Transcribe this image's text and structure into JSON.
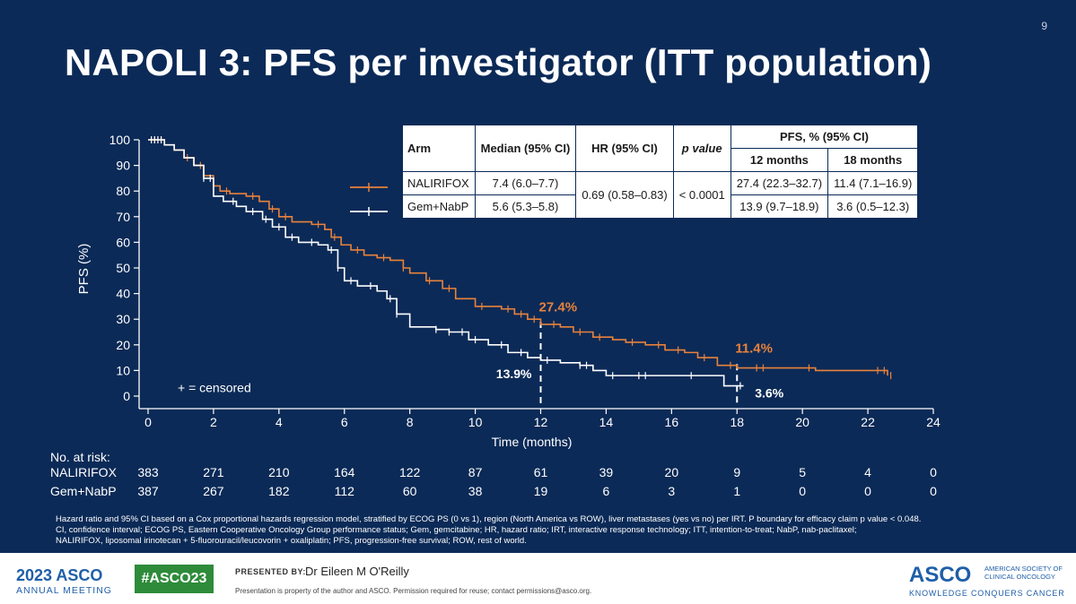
{
  "slide": {
    "page_number": "9",
    "title": "NAPOLI 3: PFS per investigator (ITT population)"
  },
  "colors": {
    "background": "#0b2a57",
    "nalirifox": "#e8823b",
    "gemnabp": "#ffffff",
    "text": "#ffffff"
  },
  "chart_data": {
    "type": "line",
    "title": "",
    "xlabel": "Time (months)",
    "ylabel": "PFS (%)",
    "xlim": [
      0,
      24
    ],
    "ylim": [
      0,
      100
    ],
    "xticks": [
      0,
      2,
      4,
      6,
      8,
      10,
      12,
      14,
      16,
      18,
      20,
      22,
      24
    ],
    "yticks": [
      0,
      10,
      20,
      30,
      40,
      50,
      60,
      70,
      80,
      90,
      100
    ],
    "censored_legend": "+ = censored",
    "series": [
      {
        "name": "NALIRIFOX",
        "color": "#e8823b",
        "x": [
          0,
          0.5,
          0.8,
          1.1,
          1.4,
          1.7,
          2.0,
          2.2,
          2.5,
          3.0,
          3.4,
          3.7,
          4.0,
          4.4,
          5.0,
          5.4,
          5.6,
          5.9,
          6.2,
          6.6,
          7.0,
          7.4,
          7.8,
          8.0,
          8.5,
          9.0,
          9.4,
          10.0,
          10.8,
          11.2,
          11.6,
          12.0,
          12.6,
          13.0,
          13.6,
          14.2,
          14.6,
          15.2,
          15.8,
          16.4,
          16.8,
          17.4,
          18.0,
          18.6,
          19.6,
          20.4,
          22.2,
          22.6
        ],
        "y": [
          100,
          98,
          96,
          93,
          90,
          86,
          82,
          80,
          79,
          78,
          76,
          73,
          70,
          68,
          67,
          65,
          62,
          59,
          57,
          55,
          54,
          53,
          50,
          48,
          45,
          42,
          38,
          35,
          34,
          32,
          30,
          28,
          27,
          25,
          23,
          22,
          21,
          20,
          18,
          17,
          15,
          12,
          11,
          11,
          11,
          10,
          10,
          8
        ],
        "censor_x": [
          0.2,
          0.4,
          1.2,
          1.6,
          2.4,
          3.2,
          3.8,
          4.2,
          5.2,
          5.7,
          6.4,
          7.2,
          7.8,
          8.6,
          9.2,
          10.2,
          11.0,
          11.4,
          11.8,
          12.4,
          13.2,
          13.8,
          14.8,
          15.6,
          16.2,
          17.0,
          17.8,
          18.6,
          18.8,
          20.2,
          22.3,
          22.5,
          22.7
        ],
        "label": "27.4%",
        "label2": "11.4%"
      },
      {
        "name": "Gem+NabP",
        "color": "#ffffff",
        "x": [
          0,
          0.5,
          0.8,
          1.1,
          1.4,
          1.7,
          2.0,
          2.3,
          2.7,
          3.0,
          3.5,
          3.8,
          4.2,
          4.6,
          5.2,
          5.5,
          5.8,
          6.0,
          6.4,
          7.0,
          7.3,
          7.6,
          8.0,
          8.8,
          9.2,
          9.8,
          10.4,
          11.0,
          11.6,
          12.0,
          12.6,
          13.2,
          13.6,
          14.0,
          15.2,
          16.8,
          17.4,
          17.6,
          18.0,
          18.2
        ],
        "y": [
          100,
          98,
          96,
          93,
          90,
          85,
          78,
          76,
          74,
          72,
          69,
          66,
          62,
          60,
          59,
          57,
          50,
          45,
          43,
          41,
          38,
          32,
          27,
          26,
          25,
          22,
          20,
          17,
          15,
          14,
          13,
          12,
          10,
          8,
          8,
          8,
          8,
          4,
          4,
          4
        ],
        "censor_x": [
          0.1,
          0.2,
          0.3,
          0.4,
          1.7,
          1.9,
          2.6,
          3.2,
          3.6,
          4.0,
          4.4,
          5.0,
          5.6,
          5.8,
          6.2,
          6.8,
          7.4,
          7.6,
          8.8,
          9.2,
          9.6,
          10.0,
          10.8,
          11.4,
          12.2,
          13.2,
          13.4,
          14.2,
          15.0,
          15.2,
          16.6,
          18.1
        ],
        "label": "13.9%",
        "label2": "3.6%"
      }
    ],
    "reference_lines": [
      12,
      18
    ]
  },
  "table": {
    "headers": {
      "arm": "Arm",
      "median": "Median (95%  CI)",
      "hr": "HR (95%  CI)",
      "p": "p value",
      "pfs": "PFS, % (95%  CI)",
      "m12": "12 months",
      "m18": "18 months"
    },
    "rows": [
      {
        "arm": "NALIRIFOX",
        "median": "7.4 (6.0–7.7)",
        "m12": "27.4 (22.3–32.7)",
        "m18": "11.4 (7.1–16.9)"
      },
      {
        "arm": "Gem+NabP",
        "median": "5.6 (5.3–5.8)",
        "m12": "13.9 (9.7–18.9)",
        "m18": "3.6 (0.5–12.3)"
      }
    ],
    "hr": "0.69 (0.58–0.83)",
    "p": "< 0.0001"
  },
  "risk": {
    "title": "No. at risk:",
    "rows": [
      {
        "label": "NALIRIFOX",
        "values": [
          "383",
          "271",
          "210",
          "164",
          "122",
          "87",
          "61",
          "39",
          "20",
          "9",
          "5",
          "4",
          "0"
        ]
      },
      {
        "label": "Gem+NabP",
        "values": [
          "387",
          "267",
          "182",
          "112",
          "60",
          "38",
          "19",
          "6",
          "3",
          "1",
          "0",
          "0",
          "0"
        ]
      }
    ]
  },
  "footnote": {
    "line1": "Hazard ratio and 95% CI based on a Cox proportional hazards regression model, stratified by ECOG PS (0 vs 1), region (North America vs ROW), liver metastases (yes vs no) per IRT.  P boundary  for efficacy claim p value  < 0.048.",
    "line2": "CI, confidence interval; ECOG PS, Eastern Cooperative Oncology Group performance status; Gem, gemcitabine; HR, hazard ratio; IRT, interactive response technology; ITT, intention-to-treat;  NabP, nab-paclitaxel;",
    "line3": "NALIRIFOX,  liposomal irinotecan + 5-fluorouracil/leucovorin  + oxaliplatin; PFS, progression-free survival; ROW, rest of world."
  },
  "footer": {
    "year": "2023",
    "asco": "ASCO",
    "annual": "ANNUAL MEETING",
    "hashtag": "#ASCO23",
    "presented_by": "PRESENTED BY:",
    "presenter": "Dr Eileen  M O'Reilly",
    "disclaimer": "Presentation is property of the author and ASCO. Permission required for reuse; contact permissions@asco.org.",
    "logo": "ASCO",
    "org": "AMERICAN SOCIETY OF CLINICAL ONCOLOGY",
    "tagline": "KNOWLEDGE CONQUERS CANCER"
  }
}
